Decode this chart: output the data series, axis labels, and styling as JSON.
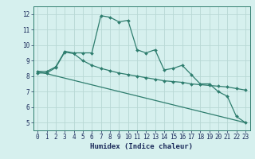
{
  "title": "",
  "xlabel": "Humidex (Indice chaleur)",
  "bg_color": "#d6f0ee",
  "grid_color": "#b8d8d4",
  "line_color": "#2e7d6e",
  "xlim": [
    -0.5,
    23.5
  ],
  "ylim": [
    4.5,
    12.5
  ],
  "xticks": [
    0,
    1,
    2,
    3,
    4,
    5,
    6,
    7,
    8,
    9,
    10,
    11,
    12,
    13,
    14,
    15,
    16,
    17,
    18,
    19,
    20,
    21,
    22,
    23
  ],
  "yticks": [
    5,
    6,
    7,
    8,
    9,
    10,
    11,
    12
  ],
  "line1_x": [
    0,
    1,
    2,
    3,
    4,
    5,
    6,
    7,
    8,
    9,
    10,
    11,
    12,
    13,
    14,
    15,
    16,
    17,
    18,
    19,
    20,
    21,
    22,
    23
  ],
  "line1_y": [
    8.3,
    8.3,
    8.6,
    9.6,
    9.5,
    9.5,
    9.5,
    11.9,
    11.8,
    11.5,
    11.6,
    9.7,
    9.5,
    9.7,
    8.4,
    8.5,
    8.7,
    8.1,
    7.5,
    7.5,
    7.0,
    6.7,
    5.4,
    5.0
  ],
  "line2_x": [
    0,
    1,
    2,
    3,
    4,
    5,
    6,
    7,
    8,
    9,
    10,
    11,
    12,
    13,
    14,
    15,
    16,
    17,
    18,
    19,
    20,
    21,
    22,
    23
  ],
  "line2_y": [
    8.2,
    8.2,
    8.55,
    9.55,
    9.45,
    9.0,
    8.7,
    8.5,
    8.35,
    8.2,
    8.1,
    8.0,
    7.9,
    7.8,
    7.7,
    7.65,
    7.6,
    7.5,
    7.45,
    7.4,
    7.35,
    7.3,
    7.2,
    7.1
  ],
  "line3_x": [
    0,
    23
  ],
  "line3_y": [
    8.3,
    5.0
  ],
  "marker_size": 2.0,
  "line_width": 0.9
}
